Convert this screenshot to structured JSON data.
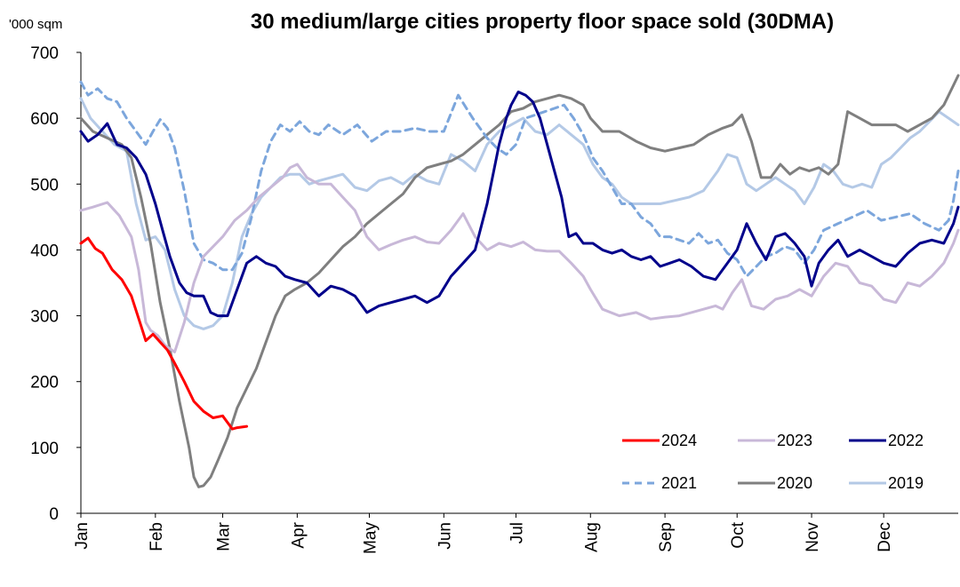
{
  "chart_data": {
    "type": "line",
    "title": "30 medium/large cities property floor space sold (30DMA)",
    "ylabel": "'000 sqm",
    "ylim": [
      0,
      700
    ],
    "yticks": [
      0,
      100,
      200,
      300,
      400,
      500,
      600,
      700
    ],
    "xlim": [
      1,
      366
    ],
    "months": [
      {
        "label": "Jan",
        "day": 1
      },
      {
        "label": "Feb",
        "day": 32
      },
      {
        "label": "Mar",
        "day": 60
      },
      {
        "label": "Apr",
        "day": 91
      },
      {
        "label": "May",
        "day": 121
      },
      {
        "label": "Jun",
        "day": 152
      },
      {
        "label": "Jul",
        "day": 182
      },
      {
        "label": "Aug",
        "day": 213
      },
      {
        "label": "Sep",
        "day": 244
      },
      {
        "label": "Oct",
        "day": 274
      },
      {
        "label": "Nov",
        "day": 305
      },
      {
        "label": "Dec",
        "day": 335
      }
    ],
    "grid": false,
    "legend_position": "bottom-right",
    "series": [
      {
        "name": "2024",
        "color": "#ff0000",
        "dash": "solid",
        "x": [
          1,
          4,
          7,
          10,
          14,
          18,
          22,
          26,
          28,
          31,
          34,
          37,
          40,
          44,
          48,
          52,
          56,
          60,
          64,
          66,
          70
        ],
        "y": [
          410,
          418,
          402,
          395,
          370,
          355,
          330,
          285,
          262,
          272,
          260,
          248,
          228,
          200,
          170,
          155,
          145,
          148,
          128,
          130,
          132
        ]
      },
      {
        "name": "2023",
        "color": "#c8b8d8",
        "dash": "solid",
        "x": [
          1,
          6,
          12,
          17,
          22,
          25,
          28,
          30,
          33,
          36,
          40,
          44,
          48,
          52,
          56,
          60,
          65,
          70,
          75,
          80,
          85,
          88,
          91,
          95,
          100,
          105,
          110,
          115,
          120,
          125,
          130,
          135,
          140,
          145,
          150,
          155,
          160,
          165,
          170,
          175,
          180,
          185,
          190,
          195,
          200,
          205,
          210,
          213,
          218,
          225,
          232,
          238,
          244,
          250,
          255,
          260,
          265,
          268,
          272,
          276,
          280,
          285,
          290,
          295,
          300,
          305,
          310,
          315,
          320,
          325,
          330,
          335,
          340,
          345,
          350,
          355,
          360,
          364,
          366
        ],
        "y": [
          460,
          465,
          472,
          452,
          420,
          370,
          290,
          278,
          270,
          255,
          245,
          290,
          350,
          390,
          405,
          420,
          445,
          460,
          480,
          495,
          510,
          525,
          530,
          510,
          500,
          500,
          480,
          460,
          420,
          400,
          408,
          415,
          420,
          412,
          410,
          430,
          455,
          420,
          400,
          410,
          405,
          412,
          400,
          398,
          398,
          380,
          360,
          340,
          310,
          300,
          305,
          295,
          298,
          300,
          305,
          310,
          315,
          310,
          335,
          355,
          315,
          310,
          325,
          330,
          340,
          330,
          360,
          380,
          375,
          350,
          345,
          325,
          320,
          350,
          345,
          360,
          380,
          410,
          430
        ]
      },
      {
        "name": "2022",
        "color": "#00008b",
        "dash": "solid",
        "x": [
          1,
          4,
          8,
          12,
          16,
          20,
          24,
          28,
          32,
          35,
          38,
          42,
          45,
          48,
          52,
          55,
          58,
          62,
          66,
          70,
          74,
          78,
          82,
          86,
          90,
          95,
          100,
          105,
          110,
          115,
          120,
          125,
          130,
          135,
          140,
          145,
          150,
          155,
          160,
          165,
          170,
          175,
          178,
          180,
          183,
          186,
          189,
          192,
          195,
          198,
          201,
          204,
          207,
          210,
          214,
          218,
          222,
          226,
          230,
          234,
          238,
          242,
          246,
          250,
          255,
          260,
          265,
          270,
          274,
          278,
          282,
          286,
          290,
          294,
          298,
          302,
          305,
          308,
          312,
          316,
          320,
          325,
          330,
          335,
          340,
          345,
          350,
          355,
          360,
          364,
          366
        ],
        "y": [
          580,
          565,
          575,
          592,
          560,
          555,
          540,
          515,
          470,
          430,
          390,
          350,
          335,
          330,
          330,
          305,
          300,
          300,
          340,
          380,
          390,
          380,
          375,
          360,
          355,
          350,
          330,
          345,
          340,
          330,
          305,
          315,
          320,
          325,
          330,
          320,
          330,
          360,
          380,
          400,
          470,
          560,
          600,
          620,
          640,
          635,
          625,
          600,
          560,
          520,
          480,
          420,
          425,
          410,
          410,
          400,
          395,
          400,
          390,
          385,
          390,
          375,
          380,
          385,
          375,
          360,
          355,
          380,
          400,
          440,
          410,
          385,
          420,
          425,
          410,
          390,
          345,
          380,
          400,
          415,
          390,
          400,
          390,
          380,
          375,
          395,
          410,
          415,
          410,
          440,
          465
        ]
      },
      {
        "name": "2021",
        "color": "#7ca6dc",
        "dash": "dashed",
        "x": [
          1,
          4,
          8,
          12,
          16,
          20,
          24,
          28,
          31,
          34,
          37,
          40,
          44,
          48,
          52,
          56,
          60,
          64,
          68,
          72,
          76,
          80,
          84,
          88,
          92,
          96,
          100,
          104,
          110,
          116,
          122,
          128,
          134,
          140,
          146,
          152,
          158,
          164,
          170,
          174,
          178,
          182,
          186,
          190,
          194,
          198,
          202,
          206,
          210,
          214,
          218,
          222,
          226,
          230,
          234,
          238,
          242,
          246,
          250,
          254,
          258,
          262,
          266,
          270,
          274,
          278,
          282,
          286,
          290,
          294,
          298,
          302,
          306,
          310,
          316,
          322,
          328,
          334,
          340,
          346,
          352,
          358,
          362,
          364,
          366
        ],
        "y": [
          655,
          635,
          645,
          630,
          625,
          600,
          580,
          560,
          580,
          598,
          585,
          555,
          490,
          410,
          385,
          380,
          370,
          370,
          395,
          450,
          520,
          565,
          590,
          580,
          595,
          580,
          575,
          590,
          575,
          590,
          565,
          580,
          580,
          585,
          580,
          580,
          635,
          600,
          570,
          555,
          545,
          560,
          600,
          605,
          610,
          615,
          620,
          600,
          575,
          540,
          520,
          495,
          470,
          470,
          450,
          440,
          420,
          420,
          415,
          410,
          425,
          410,
          415,
          395,
          385,
          360,
          375,
          390,
          395,
          405,
          400,
          380,
          400,
          430,
          440,
          450,
          460,
          445,
          450,
          455,
          440,
          430,
          445,
          475,
          520
        ]
      },
      {
        "name": "2020",
        "color": "#7f7f7f",
        "dash": "solid",
        "x": [
          1,
          6,
          12,
          18,
          22,
          26,
          30,
          34,
          38,
          42,
          46,
          48,
          50,
          52,
          55,
          58,
          62,
          66,
          70,
          74,
          78,
          82,
          86,
          90,
          95,
          100,
          105,
          110,
          115,
          120,
          125,
          130,
          135,
          140,
          145,
          150,
          155,
          160,
          165,
          170,
          175,
          180,
          185,
          190,
          195,
          200,
          205,
          210,
          213,
          218,
          225,
          232,
          238,
          244,
          250,
          256,
          262,
          268,
          272,
          276,
          280,
          284,
          288,
          292,
          296,
          300,
          304,
          308,
          312,
          316,
          320,
          325,
          330,
          335,
          340,
          345,
          350,
          355,
          360,
          364,
          366
        ],
        "y": [
          600,
          580,
          570,
          560,
          540,
          480,
          410,
          320,
          250,
          170,
          100,
          55,
          40,
          42,
          55,
          80,
          115,
          160,
          190,
          220,
          260,
          300,
          330,
          340,
          350,
          365,
          385,
          405,
          420,
          440,
          455,
          470,
          485,
          510,
          525,
          530,
          535,
          545,
          560,
          575,
          590,
          610,
          615,
          625,
          630,
          635,
          630,
          620,
          600,
          580,
          580,
          565,
          555,
          550,
          555,
          560,
          575,
          585,
          590,
          605,
          565,
          510,
          510,
          530,
          515,
          525,
          520,
          525,
          515,
          530,
          610,
          600,
          590,
          590,
          590,
          580,
          590,
          600,
          620,
          650,
          665
        ]
      },
      {
        "name": "2019",
        "color": "#b4c9e6",
        "dash": "solid",
        "x": [
          1,
          5,
          10,
          15,
          20,
          24,
          28,
          32,
          36,
          40,
          44,
          48,
          52,
          56,
          60,
          64,
          68,
          72,
          76,
          80,
          84,
          88,
          92,
          96,
          100,
          105,
          110,
          115,
          120,
          125,
          130,
          135,
          140,
          145,
          150,
          155,
          160,
          165,
          170,
          175,
          180,
          185,
          190,
          195,
          200,
          205,
          210,
          214,
          218,
          222,
          226,
          230,
          236,
          242,
          248,
          254,
          260,
          266,
          270,
          274,
          278,
          282,
          286,
          290,
          294,
          298,
          302,
          306,
          310,
          314,
          318,
          322,
          326,
          330,
          334,
          338,
          342,
          346,
          350,
          354,
          358,
          362,
          366
        ],
        "y": [
          630,
          600,
          580,
          560,
          550,
          470,
          415,
          420,
          400,
          340,
          300,
          285,
          280,
          285,
          300,
          350,
          420,
          455,
          480,
          495,
          510,
          515,
          515,
          500,
          505,
          510,
          515,
          495,
          490,
          505,
          510,
          500,
          515,
          505,
          500,
          545,
          535,
          520,
          560,
          580,
          590,
          600,
          580,
          575,
          590,
          575,
          560,
          530,
          510,
          500,
          480,
          470,
          470,
          470,
          475,
          480,
          490,
          520,
          545,
          540,
          500,
          490,
          500,
          510,
          500,
          490,
          470,
          495,
          530,
          520,
          500,
          495,
          500,
          495,
          530,
          540,
          555,
          570,
          580,
          595,
          610,
          600,
          590
        ]
      }
    ]
  }
}
